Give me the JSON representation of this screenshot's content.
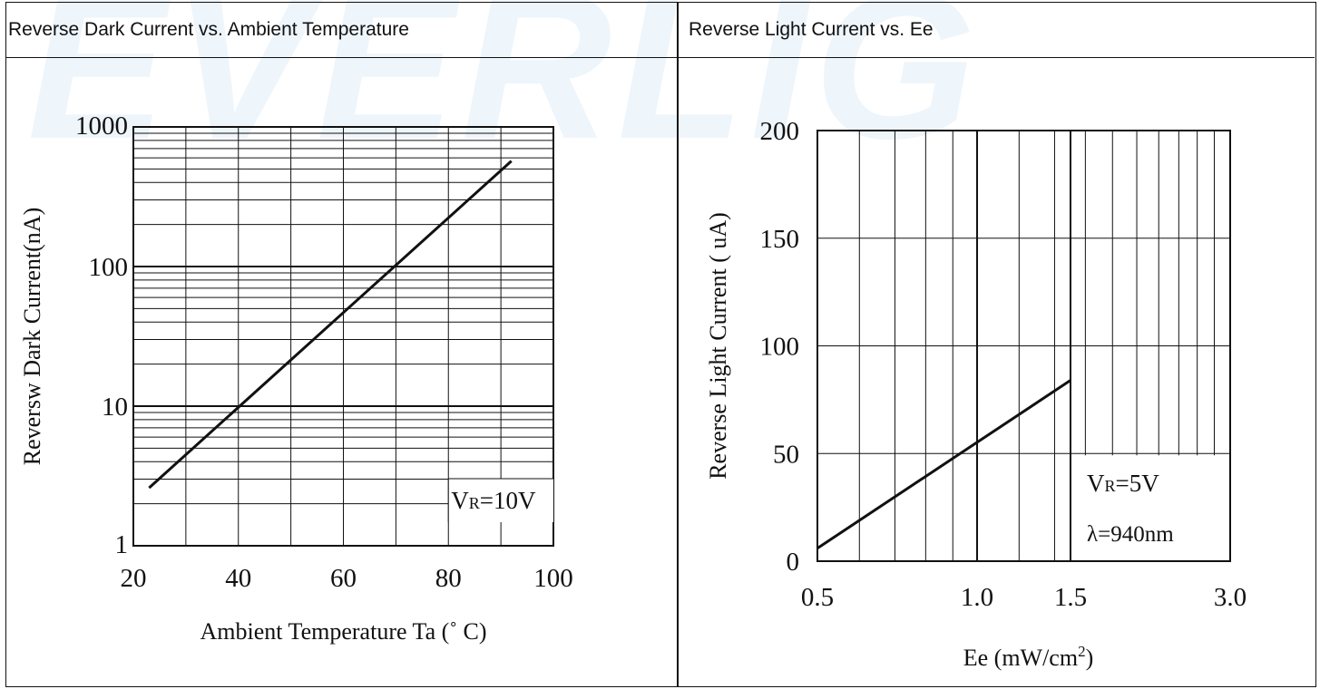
{
  "watermark": "EVERLIG",
  "panels": {
    "left_title": "Reverse Dark Current vs. Ambient Temperature",
    "right_title": "Reverse Light Current vs. Ee"
  },
  "chart_data": [
    {
      "type": "line",
      "title": "Reverse Dark Current vs. Ambient Temperature",
      "xlabel": "Ambient Temperature Ta (˚ C)",
      "ylabel": "Reversw Dark Current(nA)",
      "xlim": [
        20,
        100
      ],
      "ylim": [
        1,
        1000
      ],
      "yscale": "log",
      "xticks": [
        "20",
        "40",
        "60",
        "80",
        "100"
      ],
      "yticks": [
        "1",
        "10",
        "100",
        "1000"
      ],
      "grid": true,
      "annotation": {
        "symbol": "V",
        "subscript": "R",
        "value": "=10V"
      },
      "series": [
        {
          "x": [
            23,
            92
          ],
          "y": [
            2.6,
            570
          ]
        }
      ]
    },
    {
      "type": "line",
      "title": "Reverse Light Current vs. Ee",
      "xlabel": "Ee  (mW/cm",
      "xlabel_sup": "2",
      "xlabel_end": ")",
      "ylabel": "Reverse Light Current ( uA)",
      "xscale": "log",
      "xlim": [
        0.5,
        3.0
      ],
      "ylim": [
        0,
        200
      ],
      "xticks": [
        "0.5",
        "1.0",
        "1.5",
        "3.0"
      ],
      "yticks": [
        "0",
        "50",
        "100",
        "150",
        "200"
      ],
      "grid": true,
      "annotation": {
        "symbol": "V",
        "subscript": "R",
        "value": "=5V",
        "line2": "λ=940nm"
      },
      "series": [
        {
          "x": [
            0.5,
            1.5
          ],
          "y": [
            6,
            84
          ]
        }
      ]
    }
  ]
}
